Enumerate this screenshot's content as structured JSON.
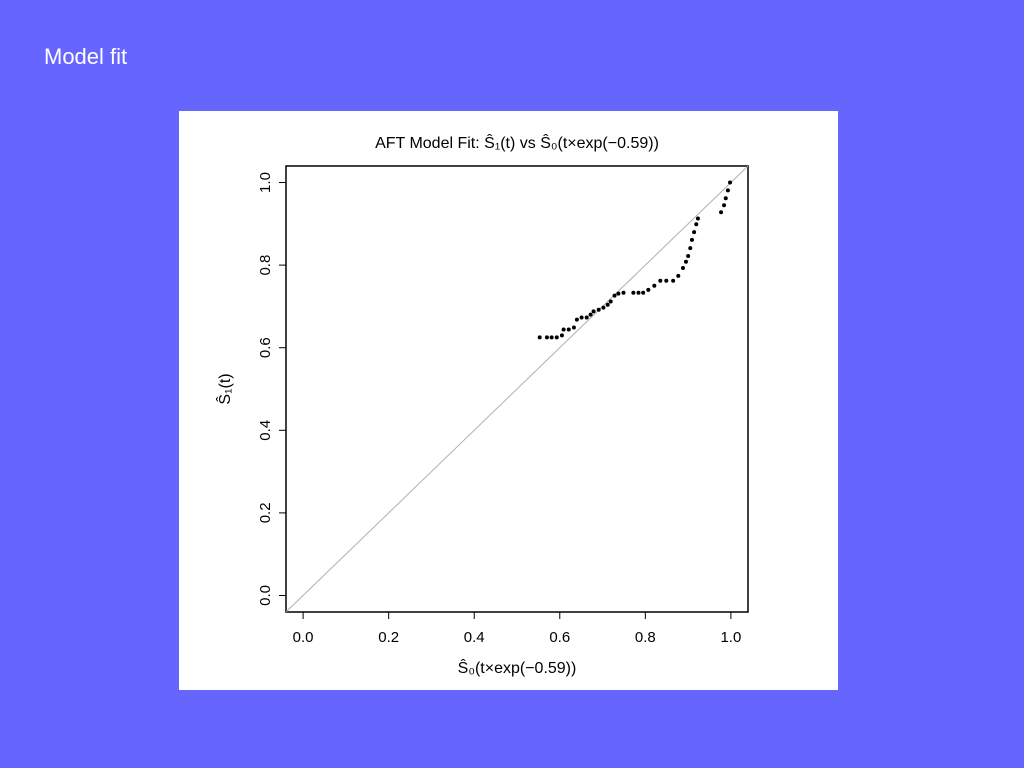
{
  "title": "Model fit",
  "chart_data": {
    "type": "scatter",
    "title": "AFT Model Fit: Ŝ₁(t) vs Ŝ₀(t×exp(−0.59))",
    "x_label": "Ŝ₀(t×exp(−0.59))",
    "y_label": "Ŝ₁(t)",
    "color": "#000000",
    "x": [
      0.553,
      0.57,
      0.581,
      0.593,
      0.605,
      0.609,
      0.621,
      0.633,
      0.64,
      0.651,
      0.663,
      0.672,
      0.679,
      0.691,
      0.702,
      0.712,
      0.719,
      0.728,
      0.737,
      0.749,
      0.772,
      0.784,
      0.795,
      0.807,
      0.821,
      0.835,
      0.849,
      0.865,
      0.877,
      0.888,
      0.895,
      0.9,
      0.905,
      0.909,
      0.914,
      0.919,
      0.923,
      0.977,
      0.984,
      0.988,
      0.993,
      0.998
    ],
    "values": [
      0.625,
      0.625,
      0.625,
      0.625,
      0.63,
      0.644,
      0.644,
      0.649,
      0.668,
      0.673,
      0.673,
      0.68,
      0.688,
      0.692,
      0.697,
      0.704,
      0.712,
      0.726,
      0.731,
      0.733,
      0.733,
      0.733,
      0.733,
      0.74,
      0.75,
      0.762,
      0.762,
      0.762,
      0.774,
      0.793,
      0.808,
      0.822,
      0.841,
      0.861,
      0.88,
      0.899,
      0.913,
      0.928,
      0.945,
      0.962,
      0.981,
      1.0
    ],
    "abline": {
      "intercept": 0,
      "slope": 1,
      "color": "#b0b0b0"
    },
    "xlim": [
      -0.04,
      1.04
    ],
    "ylim": [
      -0.04,
      1.04
    ],
    "xticks": [
      {
        "value": 0,
        "label": "0.0"
      },
      0.2,
      0.4,
      0.6,
      0.8,
      {
        "value": 1,
        "label": "1.0"
      }
    ],
    "yticks": [
      {
        "value": 0,
        "label": "0.0"
      },
      0.2,
      0.4,
      0.6,
      0.8,
      {
        "value": 1,
        "label": "1.0"
      }
    ]
  }
}
